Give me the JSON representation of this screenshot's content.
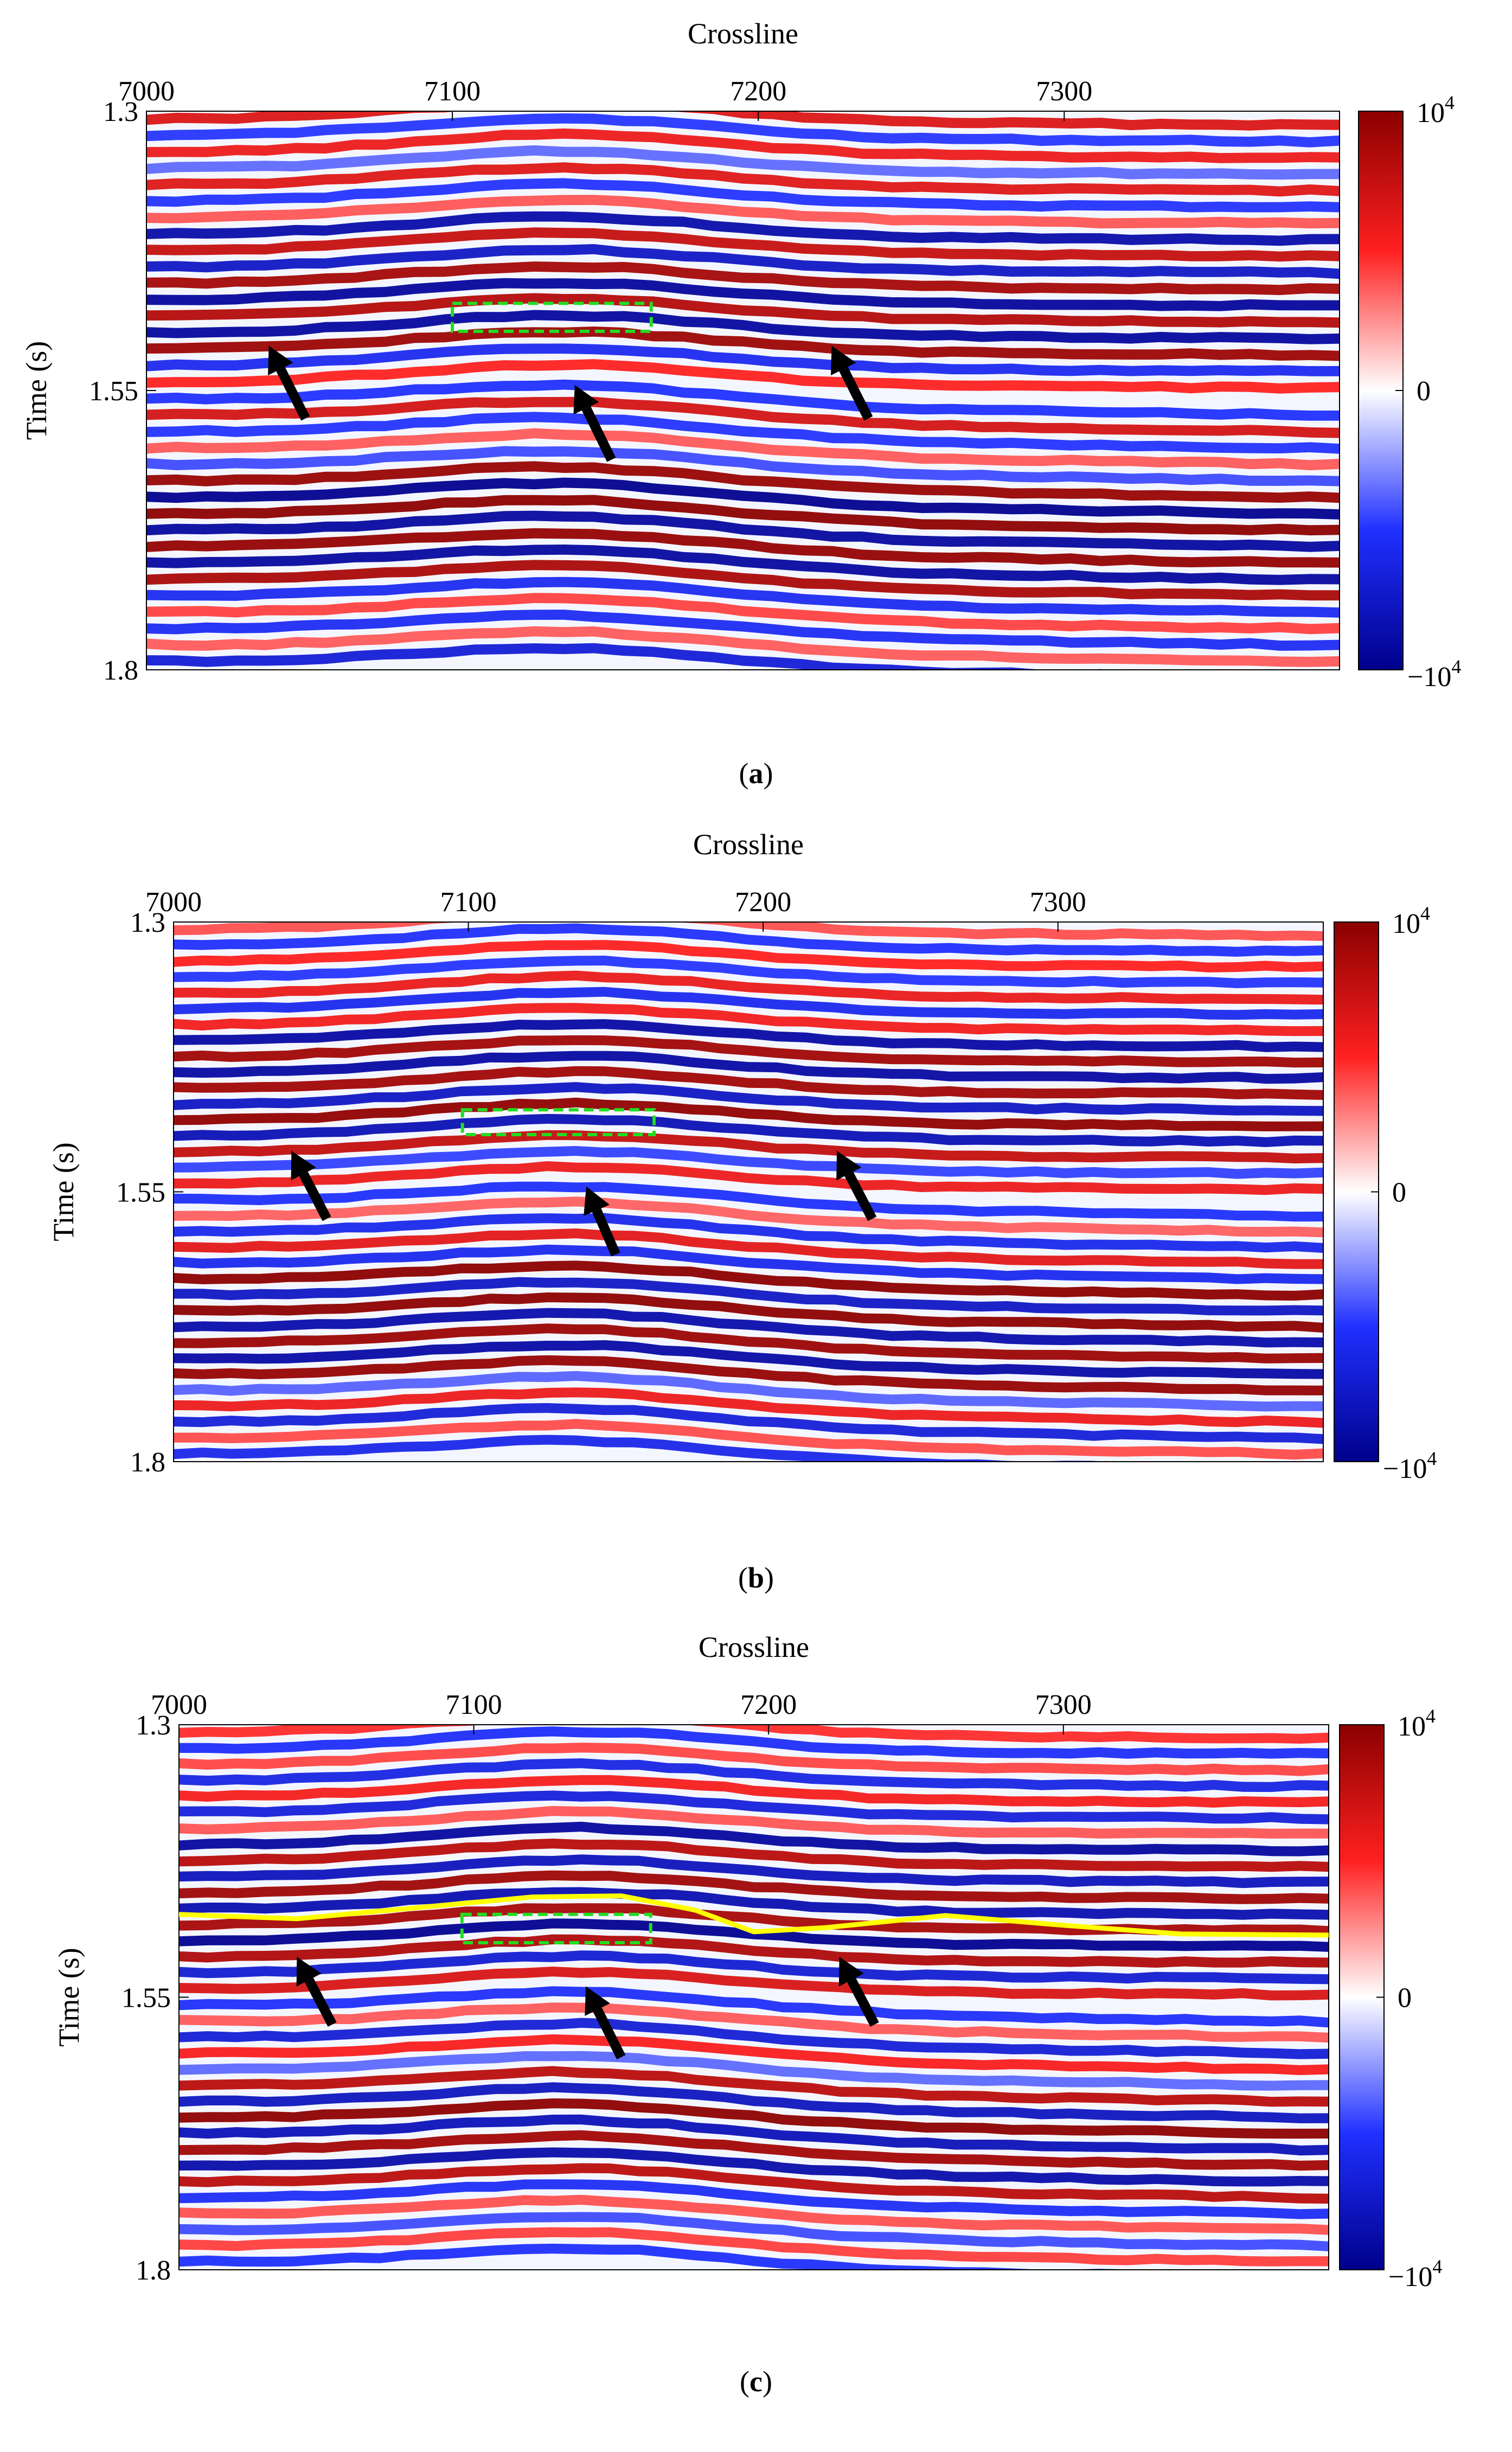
{
  "chart_data": [
    {
      "type": "heatmap",
      "panel_label": "a",
      "xlabel": "Crossline",
      "ylabel": "Time (s)",
      "xlim": [
        7000,
        7390
      ],
      "ylim": [
        1.3,
        1.8
      ],
      "x_ticks": [
        "7000",
        "7100",
        "7200",
        "7300"
      ],
      "y_ticks": [
        "1.3",
        "1.55",
        "1.8"
      ],
      "colorbar": {
        "min_label": "−10",
        "max_label": "10",
        "mid_label": "0",
        "exponent": "4",
        "colors": [
          "#00008b",
          "#2030ff",
          "#ffffff",
          "#ff2020",
          "#8b0000"
        ]
      },
      "highlight_box": {
        "x": [
          7100,
          7165
        ],
        "y": [
          1.472,
          1.497
        ],
        "color": "#22dd22"
      },
      "arrows": [
        {
          "tip": [
            7040,
            1.51
          ],
          "tail": [
            7052,
            1.575
          ]
        },
        {
          "tip": [
            7140,
            1.545
          ],
          "tail": [
            7152,
            1.612
          ]
        },
        {
          "tip": [
            7224,
            1.51
          ],
          "tail": [
            7236,
            1.575
          ]
        }
      ]
    },
    {
      "type": "heatmap",
      "panel_label": "b",
      "xlabel": "Crossline",
      "ylabel": "Time (s)",
      "xlim": [
        7000,
        7390
      ],
      "ylim": [
        1.3,
        1.8
      ],
      "x_ticks": [
        "7000",
        "7100",
        "7200",
        "7300"
      ],
      "y_ticks": [
        "1.3",
        "1.55",
        "1.8"
      ],
      "colorbar": {
        "min_label": "−10",
        "max_label": "10",
        "mid_label": "0",
        "exponent": "4",
        "colors": [
          "#00008b",
          "#2030ff",
          "#ffffff",
          "#ff2020",
          "#8b0000"
        ]
      },
      "highlight_box": {
        "x": [
          7098,
          7163
        ],
        "y": [
          1.474,
          1.497
        ],
        "color": "#22dd22"
      },
      "arrows": [
        {
          "tip": [
            7040,
            1.512
          ],
          "tail": [
            7052,
            1.575
          ]
        },
        {
          "tip": [
            7140,
            1.545
          ],
          "tail": [
            7150,
            1.608
          ]
        },
        {
          "tip": [
            7225,
            1.512
          ],
          "tail": [
            7237,
            1.575
          ]
        }
      ]
    },
    {
      "type": "heatmap",
      "panel_label": "c",
      "xlabel": "Crossline",
      "ylabel": "Time (s)",
      "xlim": [
        7000,
        7390
      ],
      "ylim": [
        1.3,
        1.8
      ],
      "x_ticks": [
        "7000",
        "7100",
        "7200",
        "7300"
      ],
      "y_ticks": [
        "1.3",
        "1.55",
        "1.8"
      ],
      "colorbar": {
        "min_label": "−10",
        "max_label": "10",
        "mid_label": "0",
        "exponent": "4",
        "colors": [
          "#00008b",
          "#2030ff",
          "#ffffff",
          "#ff2020",
          "#8b0000"
        ]
      },
      "highlight_box": {
        "x": [
          7096,
          7160
        ],
        "y": [
          1.474,
          1.5
        ],
        "color": "#22dd22"
      },
      "arrows": [
        {
          "tip": [
            7040,
            1.513
          ],
          "tail": [
            7052,
            1.575
          ]
        },
        {
          "tip": [
            7138,
            1.54
          ],
          "tail": [
            7150,
            1.605
          ]
        },
        {
          "tip": [
            7224,
            1.513
          ],
          "tail": [
            7236,
            1.575
          ]
        }
      ],
      "horizon_line": {
        "color": "#ffff00",
        "points": [
          [
            7000,
            1.474
          ],
          [
            7040,
            1.478
          ],
          [
            7080,
            1.468
          ],
          [
            7120,
            1.458
          ],
          [
            7150,
            1.457
          ],
          [
            7175,
            1.47
          ],
          [
            7195,
            1.49
          ],
          [
            7220,
            1.486
          ],
          [
            7260,
            1.475
          ],
          [
            7300,
            1.484
          ],
          [
            7340,
            1.492
          ],
          [
            7390,
            1.493
          ]
        ]
      }
    }
  ]
}
